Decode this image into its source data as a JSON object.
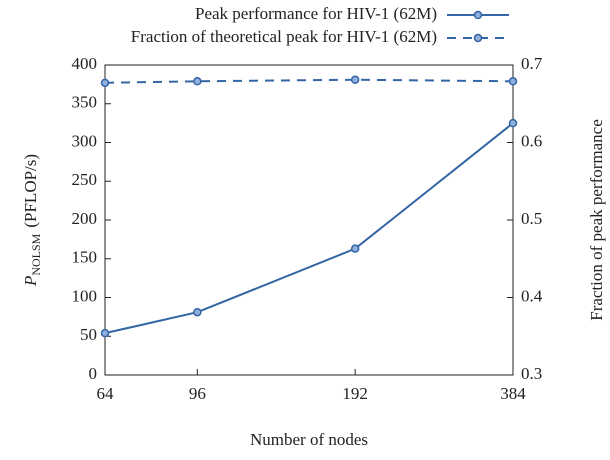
{
  "chart_data": {
    "type": "line",
    "x": [
      64,
      96,
      192,
      384
    ],
    "xlim": [
      64,
      384
    ],
    "xticks": [
      64,
      96,
      192,
      384
    ],
    "xscale": "log",
    "xlabel": "Number of nodes",
    "ylabel": {
      "symbol": "P",
      "subscript": "NOLSM",
      "unit": "(PFLOP/s)"
    },
    "y2label": "Fraction of peak performance",
    "ylim": [
      0,
      400
    ],
    "yticks": [
      0,
      50,
      100,
      150,
      200,
      250,
      300,
      350,
      400
    ],
    "y2lim": [
      0.3,
      0.7
    ],
    "y2ticks": [
      0.3,
      0.4,
      0.5,
      0.6,
      0.7
    ],
    "legend": "top",
    "series": [
      {
        "name": "Peak performance for HIV-1 (62M)",
        "color": "#3465a4",
        "dash": false,
        "values": [
          54,
          81,
          163,
          325
        ]
      },
      {
        "name": "Fraction of theoretical peak for HIV-1 (62M)",
        "color": "#3465a4",
        "dash": true,
        "axis": "y2",
        "values": [
          0.677,
          0.679,
          0.681,
          0.679
        ]
      }
    ]
  }
}
